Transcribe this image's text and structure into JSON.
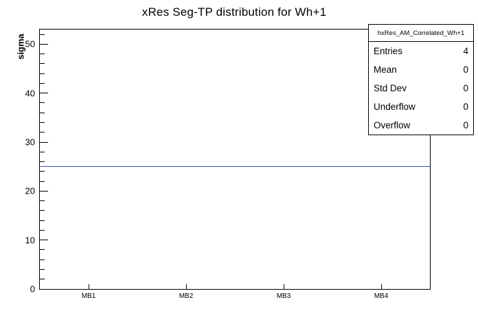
{
  "title": "xRes Seg-TP distribution for Wh+1",
  "chart_data": {
    "type": "line",
    "title": "xRes Seg-TP distribution for Wh+1",
    "xlabel": "",
    "ylabel": "sigma",
    "categories": [
      "MB1",
      "MB2",
      "MB3",
      "MB4"
    ],
    "values": [
      25,
      25,
      25,
      25
    ],
    "ylim": [
      0,
      53
    ],
    "y_major_ticks": [
      0,
      10,
      20,
      30,
      40,
      50
    ],
    "y_minor_step": 2,
    "line_color": "#3f51b5",
    "grid": false,
    "legend_position": "none"
  },
  "stats_box": {
    "header": "hxRes_AM_Correlated_Wh+1",
    "rows": [
      {
        "label": "Entries",
        "value": "4"
      },
      {
        "label": "Mean",
        "value": "0"
      },
      {
        "label": "Std Dev",
        "value": "0"
      },
      {
        "label": "Underflow",
        "value": "0"
      },
      {
        "label": "Overflow",
        "value": "0"
      }
    ]
  }
}
